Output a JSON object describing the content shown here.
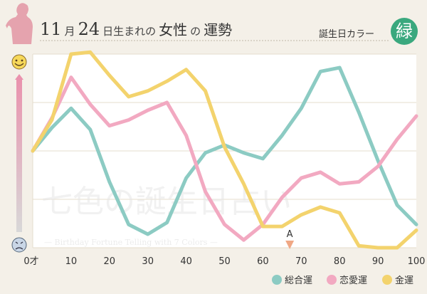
{
  "header": {
    "title_num1": "11",
    "title_unit1": "月",
    "title_num2": "24",
    "title_rest_a": "日生まれの",
    "title_big": "女性",
    "title_rest_b": "の",
    "title_big2": "運勢",
    "birth_color_label": "誕生日カラー",
    "birth_color_char": "緑",
    "birth_color_hex": "#3aa87e"
  },
  "watermark": {
    "title": "七色の誕生日占い",
    "subtitle": "— Birthday Fortune Telling with 7 Colors —"
  },
  "marker": {
    "label": "A",
    "x": 67
  },
  "chart_data": {
    "type": "line",
    "x": [
      0,
      5,
      10,
      15,
      20,
      25,
      30,
      35,
      40,
      45,
      50,
      55,
      60,
      65,
      70,
      75,
      80,
      85,
      90,
      95,
      100
    ],
    "xticks": [
      0,
      10,
      20,
      30,
      40,
      50,
      60,
      70,
      80,
      90,
      100
    ],
    "xtick_labels": [
      "0才",
      "10",
      "20",
      "30",
      "40",
      "50",
      "60",
      "70",
      "80",
      "90",
      "100"
    ],
    "xlim": [
      0,
      100
    ],
    "ylim": [
      0,
      100
    ],
    "grid": true,
    "legend_position": "bottom-right",
    "series": [
      {
        "name": "総合運",
        "color": "#8ccbc3",
        "values": [
          50,
          62,
          72,
          61,
          34,
          12,
          7,
          13,
          36,
          49,
          53,
          49,
          46,
          58,
          72,
          91,
          93,
          70,
          45,
          22,
          12
        ]
      },
      {
        "name": "恋愛運",
        "color": "#f2a9c1",
        "values": [
          50,
          67,
          88,
          74,
          63,
          66,
          71,
          75,
          58,
          29,
          12,
          4,
          12,
          26,
          36,
          39,
          33,
          34,
          42,
          56,
          68
        ]
      },
      {
        "name": "金運",
        "color": "#f3d36d",
        "values": [
          50,
          66,
          100,
          101,
          89,
          78,
          81,
          86,
          92,
          81,
          52,
          33,
          11,
          11,
          17,
          21,
          18,
          1,
          0,
          0,
          9
        ]
      }
    ]
  }
}
